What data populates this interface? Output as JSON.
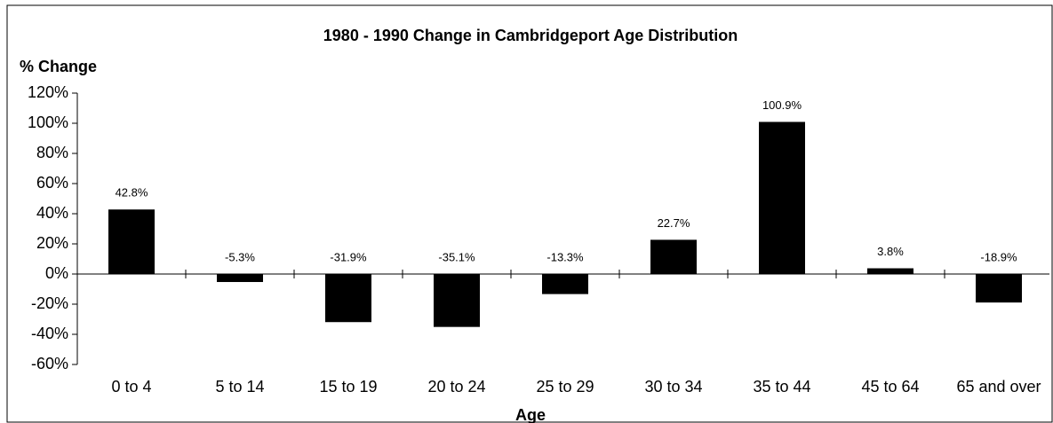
{
  "chart_data": {
    "type": "bar",
    "title": "1980 - 1990 Change in Cambridgeport Age Distribution",
    "ylabel": "% Change",
    "xlabel": "Age",
    "categories": [
      "0 to 4",
      "5 to 14",
      "15 to 19",
      "20 to 24",
      "25 to 29",
      "30 to 34",
      "35 to 44",
      "45 to 64",
      "65 and over"
    ],
    "values": [
      42.8,
      -5.3,
      -31.9,
      -35.1,
      -13.3,
      22.7,
      100.9,
      3.8,
      -18.9
    ],
    "value_labels": [
      "42.8%",
      "-5.3%",
      "-31.9%",
      "-35.1%",
      "-13.3%",
      "22.7%",
      "100.9%",
      "3.8%",
      "-18.9%"
    ],
    "color": "#000000",
    "ylim": [
      -60,
      120
    ],
    "yticks": [
      {
        "value": -60,
        "label": "-60%"
      },
      {
        "value": -40,
        "label": "-40%"
      },
      {
        "value": -20,
        "label": "-20%"
      },
      {
        "value": 0,
        "label": "0%"
      },
      {
        "value": 20,
        "label": "20%"
      },
      {
        "value": 40,
        "label": "40%"
      },
      {
        "value": 60,
        "label": "60%"
      },
      {
        "value": 80,
        "label": "80%"
      },
      {
        "value": 100,
        "label": "100%"
      },
      {
        "value": 120,
        "label": "120%"
      }
    ],
    "grid": false
  }
}
